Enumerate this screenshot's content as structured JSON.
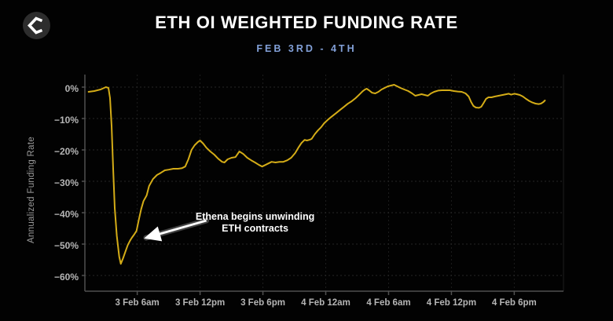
{
  "header": {
    "title": "ETH OI WEIGHTED FUNDING RATE",
    "subtitle": "FEB 3RD - 4TH",
    "logo_icon": "sigma-diamond-logo"
  },
  "colors": {
    "background": "#020202",
    "title": "#ffffff",
    "subtitle": "#82a0d8",
    "line": "#d4ac17",
    "axis": "#505050",
    "grid_horizontal": "#262626",
    "grid_vertical": "#1d1d1d",
    "tick_label": "#b5b5b5",
    "axis_title": "#9a9a9a",
    "annotation": "#ffffff",
    "logo_circle": "#2d2d2d",
    "logo_glyph": "#ffffff"
  },
  "chart_data": {
    "type": "line",
    "title": "ETH OI WEIGHTED FUNDING RATE",
    "subtitle": "FEB 3RD - 4TH",
    "xlabel": "",
    "ylabel": "Annualized Funding Rate",
    "x_unit": "hours since 3 Feb 12am",
    "xlim": [
      1.0,
      46.7
    ],
    "ylim": [
      -65,
      4
    ],
    "grid": true,
    "legend": "none",
    "y_ticks": [
      {
        "value": 0,
        "label": "0%"
      },
      {
        "value": -10,
        "label": "−10%"
      },
      {
        "value": -20,
        "label": "−20%"
      },
      {
        "value": -30,
        "label": "−30%"
      },
      {
        "value": -40,
        "label": "−40%"
      },
      {
        "value": -50,
        "label": "−50%"
      },
      {
        "value": -60,
        "label": "−60%"
      }
    ],
    "x_ticks": [
      {
        "value": 6,
        "label": "3 Feb 6am"
      },
      {
        "value": 12,
        "label": "3 Feb 12pm"
      },
      {
        "value": 18,
        "label": "3 Feb 6pm"
      },
      {
        "value": 24,
        "label": "4 Feb 12am"
      },
      {
        "value": 30,
        "label": "4 Feb 6am"
      },
      {
        "value": 36,
        "label": "4 Feb 12pm"
      },
      {
        "value": 42,
        "label": "4 Feb 6pm"
      }
    ],
    "series": [
      {
        "name": "ETH OI weighted funding rate (annualized %)",
        "color": "#d4ac17",
        "points": [
          [
            1.35,
            -1.5
          ],
          [
            1.9,
            -1.25
          ],
          [
            2.5,
            -0.75
          ],
          [
            3.0,
            0.0
          ],
          [
            3.25,
            -0.25
          ],
          [
            3.4,
            -3.5
          ],
          [
            3.55,
            -12.3
          ],
          [
            3.7,
            -26.0
          ],
          [
            3.85,
            -38.5
          ],
          [
            4.05,
            -47.3
          ],
          [
            4.28,
            -54.0
          ],
          [
            4.43,
            -56.3
          ],
          [
            4.65,
            -54.5
          ],
          [
            4.88,
            -52.3
          ],
          [
            5.1,
            -50.3
          ],
          [
            5.33,
            -48.8
          ],
          [
            5.48,
            -48.0
          ],
          [
            5.7,
            -47.0
          ],
          [
            5.93,
            -45.8
          ],
          [
            6.15,
            -42.3
          ],
          [
            6.38,
            -38.8
          ],
          [
            6.6,
            -36.3
          ],
          [
            6.9,
            -34.5
          ],
          [
            7.13,
            -31.5
          ],
          [
            7.5,
            -29.3
          ],
          [
            7.88,
            -28.0
          ],
          [
            8.25,
            -27.3
          ],
          [
            8.63,
            -26.5
          ],
          [
            9.0,
            -26.3
          ],
          [
            9.45,
            -26.0
          ],
          [
            9.9,
            -26.0
          ],
          [
            10.28,
            -25.8
          ],
          [
            10.58,
            -25.3
          ],
          [
            10.88,
            -23.0
          ],
          [
            11.18,
            -20.0
          ],
          [
            11.48,
            -18.5
          ],
          [
            11.78,
            -17.5
          ],
          [
            12.0,
            -17.0
          ],
          [
            12.3,
            -18.0
          ],
          [
            12.6,
            -19.3
          ],
          [
            12.98,
            -20.5
          ],
          [
            13.35,
            -21.5
          ],
          [
            13.73,
            -22.8
          ],
          [
            14.1,
            -23.8
          ],
          [
            14.33,
            -24.0
          ],
          [
            14.63,
            -23.0
          ],
          [
            15.0,
            -22.5
          ],
          [
            15.38,
            -22.3
          ],
          [
            15.75,
            -20.5
          ],
          [
            16.13,
            -21.3
          ],
          [
            16.5,
            -22.5
          ],
          [
            16.88,
            -23.3
          ],
          [
            17.25,
            -24.0
          ],
          [
            17.63,
            -24.8
          ],
          [
            17.93,
            -25.3
          ],
          [
            18.23,
            -24.8
          ],
          [
            18.53,
            -24.3
          ],
          [
            18.83,
            -23.8
          ],
          [
            19.2,
            -24.0
          ],
          [
            19.58,
            -23.8
          ],
          [
            19.95,
            -23.8
          ],
          [
            20.33,
            -23.3
          ],
          [
            20.7,
            -22.5
          ],
          [
            21.08,
            -21.0
          ],
          [
            21.38,
            -19.3
          ],
          [
            21.68,
            -17.8
          ],
          [
            21.98,
            -16.8
          ],
          [
            22.2,
            -17.0
          ],
          [
            22.43,
            -16.8
          ],
          [
            22.65,
            -16.5
          ],
          [
            22.95,
            -15.0
          ],
          [
            23.25,
            -13.8
          ],
          [
            23.55,
            -12.8
          ],
          [
            23.85,
            -11.5
          ],
          [
            24.23,
            -10.3
          ],
          [
            24.6,
            -9.3
          ],
          [
            24.98,
            -8.3
          ],
          [
            25.35,
            -7.3
          ],
          [
            25.73,
            -6.3
          ],
          [
            26.1,
            -5.3
          ],
          [
            26.48,
            -4.5
          ],
          [
            26.85,
            -3.5
          ],
          [
            27.23,
            -2.3
          ],
          [
            27.53,
            -1.3
          ],
          [
            27.75,
            -0.75
          ],
          [
            27.9,
            -0.5
          ],
          [
            28.13,
            -1.0
          ],
          [
            28.43,
            -1.8
          ],
          [
            28.73,
            -2.0
          ],
          [
            29.03,
            -1.5
          ],
          [
            29.33,
            -0.75
          ],
          [
            29.63,
            -0.25
          ],
          [
            29.93,
            0.25
          ],
          [
            30.23,
            0.5
          ],
          [
            30.53,
            0.75
          ],
          [
            30.83,
            0.25
          ],
          [
            31.13,
            -0.25
          ],
          [
            31.5,
            -0.75
          ],
          [
            31.88,
            -1.25
          ],
          [
            32.25,
            -2.0
          ],
          [
            32.55,
            -2.75
          ],
          [
            32.85,
            -2.5
          ],
          [
            33.15,
            -2.25
          ],
          [
            33.45,
            -2.5
          ],
          [
            33.75,
            -2.75
          ],
          [
            34.05,
            -2.0
          ],
          [
            34.35,
            -1.5
          ],
          [
            34.73,
            -1.1
          ],
          [
            35.1,
            -1.0
          ],
          [
            35.48,
            -1.0
          ],
          [
            35.85,
            -1.0
          ],
          [
            36.23,
            -1.25
          ],
          [
            36.6,
            -1.4
          ],
          [
            36.98,
            -1.5
          ],
          [
            37.35,
            -2.0
          ],
          [
            37.65,
            -3.0
          ],
          [
            37.88,
            -4.75
          ],
          [
            38.1,
            -6.0
          ],
          [
            38.33,
            -6.5
          ],
          [
            38.63,
            -6.6
          ],
          [
            38.85,
            -6.25
          ],
          [
            39.08,
            -5.0
          ],
          [
            39.3,
            -3.75
          ],
          [
            39.53,
            -3.25
          ],
          [
            39.83,
            -3.25
          ],
          [
            40.13,
            -3.0
          ],
          [
            40.5,
            -2.75
          ],
          [
            40.88,
            -2.5
          ],
          [
            41.25,
            -2.25
          ],
          [
            41.48,
            -2.1
          ],
          [
            41.7,
            -2.4
          ],
          [
            42.0,
            -2.1
          ],
          [
            42.23,
            -2.25
          ],
          [
            42.53,
            -2.5
          ],
          [
            42.83,
            -3.0
          ],
          [
            43.13,
            -3.75
          ],
          [
            43.43,
            -4.4
          ],
          [
            43.73,
            -4.9
          ],
          [
            44.03,
            -5.25
          ],
          [
            44.33,
            -5.4
          ],
          [
            44.55,
            -5.25
          ],
          [
            44.78,
            -4.75
          ],
          [
            44.93,
            -4.25
          ]
        ]
      }
    ],
    "annotation": {
      "line1": "Ethena begins unwinding",
      "line2": "ETH contracts",
      "text_hour": 17.25,
      "text_pct": -39.5,
      "arrow_from_hour": 12.6,
      "arrow_from_pct": -42.5,
      "arrow_to_hour": 6.85,
      "arrow_to_pct": -48.0
    }
  }
}
